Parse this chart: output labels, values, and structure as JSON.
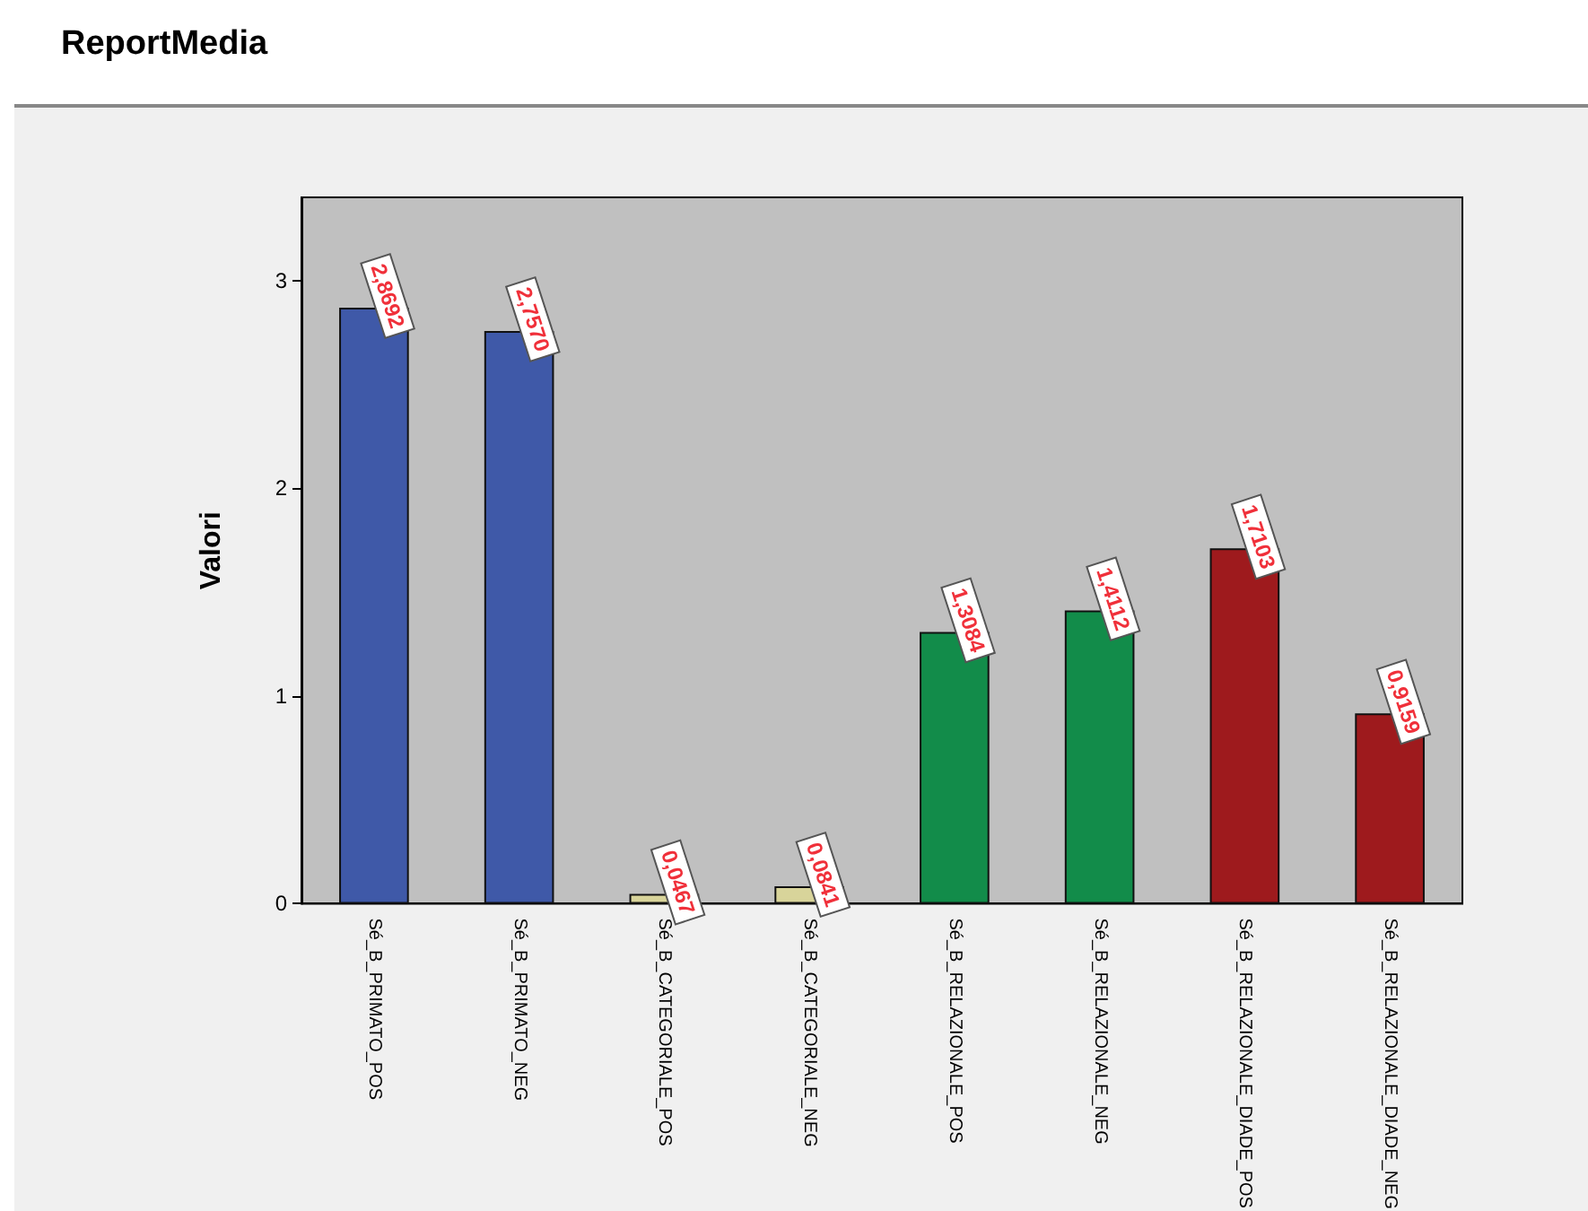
{
  "chart_data": {
    "type": "bar",
    "title": "ReportMedia",
    "ylabel": "Valori",
    "categories": [
      "Sé_B_PRIMATO_POS",
      "Sé_B_PRIMATO_NEG",
      "Sé_B_CATEGORIALE_POS",
      "Sé_B_CATEGORIALE_NEG",
      "Sé_B_RELAZIONALE_POS",
      "Sé_B_RELAZIONALE_NEG",
      "Sé_B_RELAZIONALE_DIADE_POS",
      "Sé_B_RELAZIONALE_DIADE_NEG"
    ],
    "values": [
      2.8692,
      2.757,
      0.0467,
      0.0841,
      1.3084,
      1.4112,
      1.7103,
      0.9159
    ],
    "value_labels": [
      "2,8692",
      "2,7570",
      "0,0467",
      "0,0841",
      "1,3084",
      "1,4112",
      "1,7103",
      "0,9159"
    ],
    "colors": [
      "#3f59a8",
      "#3f59a8",
      "#d8d49a",
      "#d8d49a",
      "#128c4a",
      "#128c4a",
      "#9e1a1d",
      "#9e1a1d"
    ],
    "ylim": [
      0,
      3.4
    ],
    "yticks": [
      0,
      1,
      2,
      3
    ],
    "grid": false
  }
}
